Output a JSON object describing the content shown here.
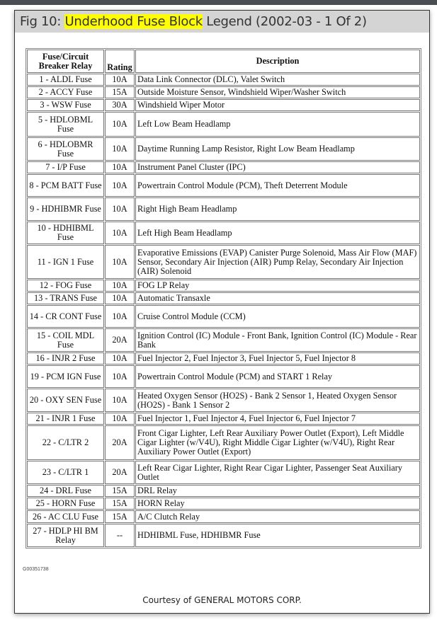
{
  "title": {
    "prefix": "Fig 10: ",
    "highlight": "Underhood Fuse Block",
    "suffix": " Legend (2002-03 - 1 Of 2)"
  },
  "table": {
    "headers": [
      "Fuse/Circuit Breaker Relay",
      "Rating",
      "Description"
    ],
    "rows": [
      [
        "1 - ALDL Fuse",
        "10A",
        "Data Link Connector (DLC), Valet Switch"
      ],
      [
        "2 - ACCY Fuse",
        "15A",
        "Outside Moisture Sensor, Windshield Wiper/Washer Switch"
      ],
      [
        "3 - WSW Fuse",
        "30A",
        "Windshield Wiper Motor"
      ],
      [
        "5 - HDLOBML Fuse",
        "10A",
        "Left Low Beam Headlamp"
      ],
      [
        "6 - HDLOBMR Fuse",
        "10A",
        "Daytime Running Lamp Resistor, Right Low Beam Headlamp"
      ],
      [
        "7 - I/P Fuse",
        "10A",
        "Instrument Panel Cluster (IPC)"
      ],
      [
        "8 - PCM BATT Fuse",
        "10A",
        "Powertrain Control Module (PCM), Theft Deterrent Module"
      ],
      [
        "9 - HDHIBMR Fuse",
        "10A",
        "Right High Beam Headlamp"
      ],
      [
        "10 - HDHIBML Fuse",
        "10A",
        "Left High Beam Headlamp"
      ],
      [
        "11 - IGN 1 Fuse",
        "10A",
        "Evaporative Emissions (EVAP) Canister Purge Solenoid, Mass Air Flow (MAF) Sensor, Secondary Air Injection (AIR) Pump Relay, Secondary Air Injection (AIR) Solenoid"
      ],
      [
        "12 - FOG Fuse",
        "10A",
        "FOG LP Relay"
      ],
      [
        "13 - TRANS Fuse",
        "10A",
        "Automatic Transaxle"
      ],
      [
        "14 - CR CONT Fuse",
        "10A",
        "Cruise Control Module (CCM)"
      ],
      [
        "15 - COIL MDL Fuse",
        "20A",
        "Ignition Control (IC) Module - Front Bank, Ignition Control (IC) Module - Rear Bank"
      ],
      [
        "16 - INJR 2 Fuse",
        "10A",
        "Fuel Injector 2, Fuel Injector 3, Fuel Injector 5, Fuel Injector 8"
      ],
      [
        "19 - PCM IGN Fuse",
        "10A",
        "Powertrain Control Module (PCM) and START 1 Relay"
      ],
      [
        "20 - OXY SEN Fuse",
        "10A",
        "Heated Oxygen Sensor (HO2S) - Bank 2 Sensor 1, Heated Oxygen Sensor (HO2S) - Bank 1 Sensor 2"
      ],
      [
        "21 - INJR 1 Fuse",
        "10A",
        "Fuel Injector 1, Fuel Injector 4, Fuel Injector 6, Fuel Injector 7"
      ],
      [
        "22 - C/LTR 2",
        "20A",
        "Front Cigar Lighter, Left Rear Auxiliary Power Outlet (Export), Left Middle Cigar Lighter (w/V4U), Right Middle Cigar Lighter (w/V4U), Right Rear Auxiliary Power Outlet (Export)"
      ],
      [
        "23 - C/LTR 1",
        "20A",
        "Left Rear Cigar Lighter, Right Rear Cigar Lighter, Passenger Seat Auxiliary Outlet"
      ],
      [
        "24 - DRL Fuse",
        "15A",
        "DRL Relay"
      ],
      [
        "25 - HORN Fuse",
        "15A",
        "HORN Relay"
      ],
      [
        "26 - AC CLU Fuse",
        "15A",
        "A/C Clutch Relay"
      ],
      [
        "27 - HDLP HI BM Relay",
        "--",
        "HDHIBML Fuse, HDHIBMR Fuse"
      ]
    ]
  },
  "figure_code": "G00351738",
  "courtesy": "Courtesy of GENERAL MOTORS CORP."
}
